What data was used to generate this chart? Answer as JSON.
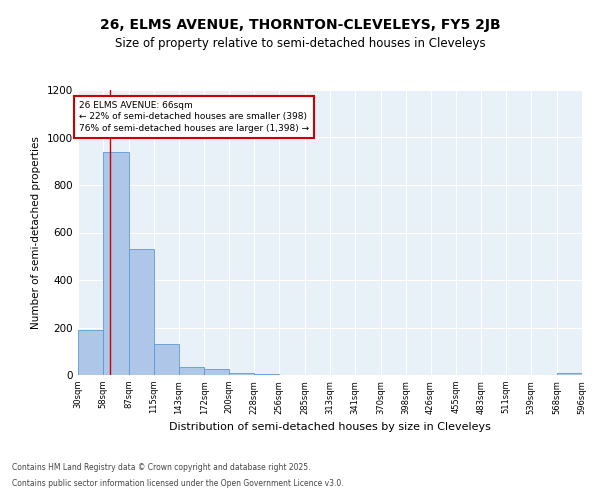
{
  "title1": "26, ELMS AVENUE, THORNTON-CLEVELEYS, FY5 2JB",
  "title2": "Size of property relative to semi-detached houses in Cleveleys",
  "xlabel": "Distribution of semi-detached houses by size in Cleveleys",
  "ylabel": "Number of semi-detached properties",
  "footnote1": "Contains HM Land Registry data © Crown copyright and database right 2025.",
  "footnote2": "Contains public sector information licensed under the Open Government Licence v3.0.",
  "annotation_title": "26 ELMS AVENUE: 66sqm",
  "annotation_line1": "← 22% of semi-detached houses are smaller (398)",
  "annotation_line2": "76% of semi-detached houses are larger (1,398) →",
  "property_size": 66,
  "bin_edges": [
    30,
    58,
    87,
    115,
    143,
    172,
    200,
    228,
    256,
    285,
    313,
    341,
    370,
    398,
    426,
    455,
    483,
    511,
    539,
    568,
    596
  ],
  "bar_heights": [
    190,
    940,
    530,
    130,
    35,
    25,
    10,
    5,
    0,
    0,
    0,
    0,
    0,
    0,
    0,
    0,
    0,
    0,
    0,
    10
  ],
  "bar_color": "#aec6e8",
  "bar_edge_color": "#5b9bd5",
  "vline_color": "#cc0000",
  "vline_x": 66,
  "annotation_box_color": "#cc0000",
  "ylim": [
    0,
    1200
  ],
  "yticks": [
    0,
    200,
    400,
    600,
    800,
    1000,
    1200
  ],
  "background_color": "#e8f0f8",
  "title1_fontsize": 10,
  "title2_fontsize": 8.5
}
